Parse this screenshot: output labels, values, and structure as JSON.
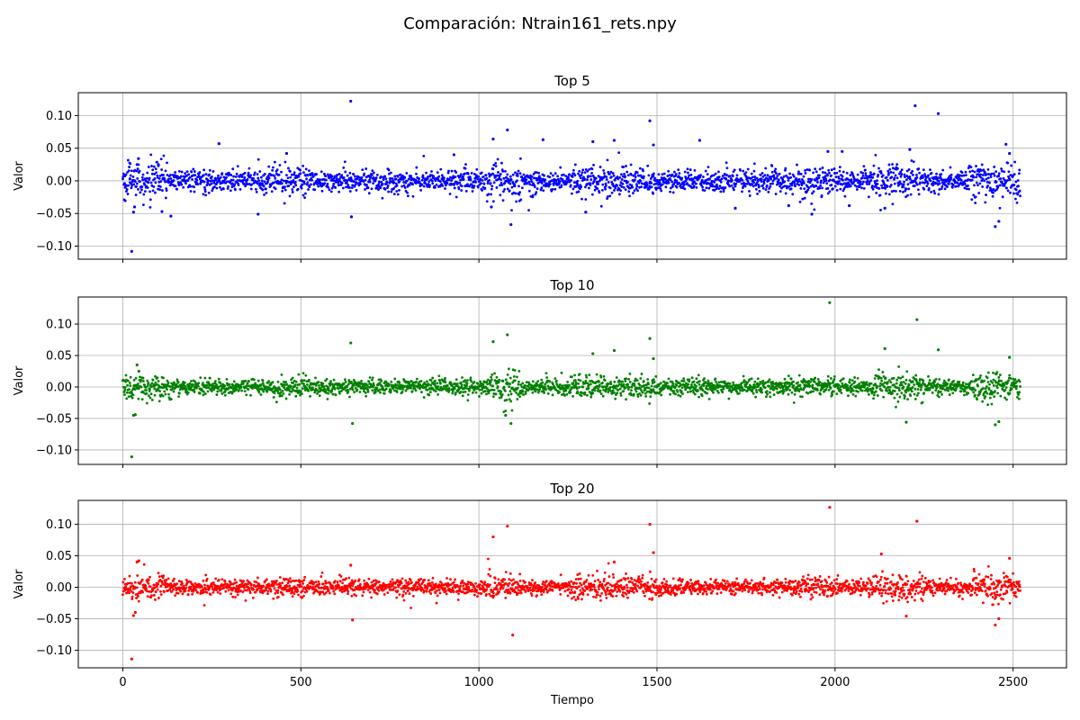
{
  "chart_data": {
    "type": "scatter",
    "title": "Comparación: Ntrain161_rets.npy",
    "xlabel": "Tiempo",
    "xlim": [
      -125,
      2650
    ],
    "x_ticks": [
      0,
      500,
      1000,
      1500,
      2000,
      2500
    ],
    "x_tick_labels": [
      "0",
      "500",
      "1000",
      "1500",
      "2000",
      "2500"
    ],
    "n_points": 2521,
    "grid": true,
    "subplots": [
      {
        "title": "Top 5",
        "ylabel": "Valor",
        "color": "#0000ff",
        "ylim": [
          -0.12,
          0.135
        ],
        "y_ticks": [
          -0.1,
          -0.05,
          0.0,
          0.05,
          0.1
        ],
        "y_tick_labels": [
          "−0.10",
          "−0.05",
          "0.00",
          "0.05",
          "0.10"
        ],
        "spread": 0.008,
        "outliers": [
          [
            7,
            -0.01
          ],
          [
            20,
            0.003
          ],
          [
            25,
            -0.108
          ],
          [
            30,
            -0.048
          ],
          [
            33,
            -0.04
          ],
          [
            40,
            0.025
          ],
          [
            44,
            0.034
          ],
          [
            100,
            0.025
          ],
          [
            110,
            -0.047
          ],
          [
            135,
            -0.054
          ],
          [
            270,
            0.057
          ],
          [
            380,
            -0.051
          ],
          [
            460,
            0.042
          ],
          [
            640,
            0.122
          ],
          [
            642,
            -0.055
          ],
          [
            930,
            0.04
          ],
          [
            1035,
            -0.04
          ],
          [
            1040,
            0.064
          ],
          [
            1080,
            0.078
          ],
          [
            1090,
            -0.067
          ],
          [
            1180,
            0.063
          ],
          [
            1300,
            -0.048
          ],
          [
            1320,
            0.06
          ],
          [
            1380,
            0.062
          ],
          [
            1480,
            0.092
          ],
          [
            1490,
            0.055
          ],
          [
            1620,
            0.062
          ],
          [
            1720,
            -0.042
          ],
          [
            1870,
            -0.038
          ],
          [
            1935,
            -0.051
          ],
          [
            1980,
            0.045
          ],
          [
            2020,
            0.045
          ],
          [
            2040,
            -0.038
          ],
          [
            2140,
            -0.042
          ],
          [
            2210,
            0.048
          ],
          [
            2225,
            0.115
          ],
          [
            2290,
            0.103
          ],
          [
            2450,
            -0.07
          ],
          [
            2460,
            -0.062
          ],
          [
            2480,
            0.056
          ],
          [
            2490,
            0.042
          ]
        ]
      },
      {
        "title": "Top 10",
        "ylabel": "Valor",
        "color": "#008000",
        "ylim": [
          -0.123,
          0.143
        ],
        "y_ticks": [
          -0.1,
          -0.05,
          0.0,
          0.05,
          0.1
        ],
        "y_tick_labels": [
          "−0.10",
          "−0.05",
          "0.00",
          "0.05",
          "0.10"
        ],
        "spread": 0.006,
        "outliers": [
          [
            25,
            -0.111
          ],
          [
            30,
            -0.045
          ],
          [
            35,
            -0.044
          ],
          [
            40,
            0.035
          ],
          [
            45,
            0.025
          ],
          [
            640,
            0.07
          ],
          [
            645,
            -0.058
          ],
          [
            1040,
            0.072
          ],
          [
            1080,
            0.083
          ],
          [
            1090,
            -0.058
          ],
          [
            1075,
            -0.045
          ],
          [
            1320,
            0.053
          ],
          [
            1380,
            0.058
          ],
          [
            1480,
            0.077
          ],
          [
            1490,
            0.045
          ],
          [
            1985,
            0.134
          ],
          [
            2140,
            0.061
          ],
          [
            2200,
            -0.056
          ],
          [
            2230,
            0.107
          ],
          [
            2290,
            0.059
          ],
          [
            2450,
            -0.06
          ],
          [
            2460,
            -0.055
          ],
          [
            2490,
            0.047
          ]
        ]
      },
      {
        "title": "Top 20",
        "ylabel": "Valor",
        "color": "#ff0000",
        "ylim": [
          -0.128,
          0.138
        ],
        "y_ticks": [
          -0.1,
          -0.05,
          0.0,
          0.05,
          0.1
        ],
        "y_tick_labels": [
          "−0.10",
          "−0.05",
          "0.00",
          "0.05",
          "0.10"
        ],
        "spread": 0.006,
        "outliers": [
          [
            25,
            -0.114
          ],
          [
            30,
            -0.045
          ],
          [
            35,
            -0.04
          ],
          [
            40,
            0.04
          ],
          [
            45,
            0.042
          ],
          [
            640,
            0.035
          ],
          [
            645,
            -0.052
          ],
          [
            1040,
            0.08
          ],
          [
            1080,
            0.097
          ],
          [
            1095,
            -0.076
          ],
          [
            1380,
            0.04
          ],
          [
            1480,
            0.1
          ],
          [
            1490,
            0.055
          ],
          [
            1985,
            0.127
          ],
          [
            2130,
            0.053
          ],
          [
            2200,
            -0.046
          ],
          [
            2230,
            0.105
          ],
          [
            2450,
            -0.06
          ],
          [
            2460,
            -0.05
          ],
          [
            2490,
            0.046
          ]
        ]
      }
    ]
  }
}
